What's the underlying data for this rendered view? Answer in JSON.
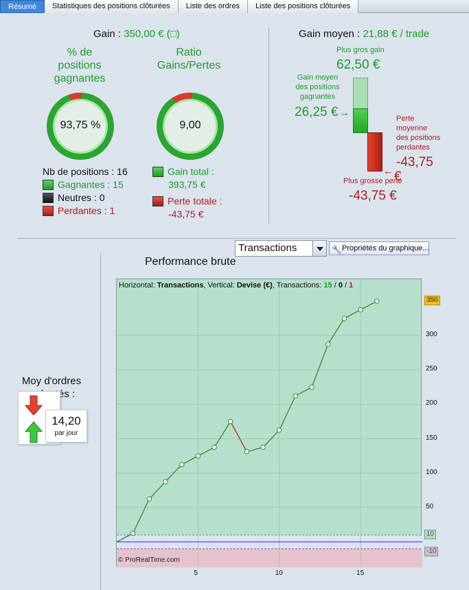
{
  "tabs": [
    {
      "label": "Résumé",
      "active": true
    },
    {
      "label": "Statistiques des positions clôturées",
      "active": false
    },
    {
      "label": "Liste des ordres",
      "active": false
    },
    {
      "label": "Liste des positions clôturées",
      "active": false
    }
  ],
  "summary": {
    "gain_label": "Gain :",
    "gain_value": "350,00 € (□)",
    "pct_title": "% de\npositions\ngagnantes",
    "pct_value": "93,75 %",
    "pct_fraction": 0.9375,
    "ratio_title": "Ratio\nGains/Pertes",
    "ratio_value": "9,00",
    "ratio_fraction": 0.9,
    "nb_positions": "Nb de positions : 16",
    "winners": "Gagnantes : 15",
    "neutral": "Neutres : 0",
    "losers": "Perdantes : 1",
    "total_gain_label": "Gain total :",
    "total_gain_value": "393,75 €",
    "total_loss_label": "Perte totale :",
    "total_loss_value": "-43,75 €"
  },
  "average": {
    "label": "Gain moyen :",
    "value": "21,88 € / trade",
    "biggest_gain_label": "Plus gros gain",
    "biggest_gain_value": "62,50 €",
    "avg_win_label": "Gain moyen\ndes positions\ngagnantes",
    "avg_win_value": "26,25 €",
    "avg_loss_label": "Perte\nmoyenne\ndes positions\nperdantes",
    "avg_loss_value": "-43,75",
    "avg_loss_unit": "€",
    "biggest_loss_label": "Plus grosse perte",
    "biggest_loss_value": "-43,75 €"
  },
  "performance": {
    "title": "Performance brute",
    "select_value": "Transactions",
    "props_button": "Propriétés du graphique..."
  },
  "orders": {
    "label": "Moy d'ordres\nexécutés :",
    "value": "14,20",
    "unit": "par jour"
  },
  "chart_data": {
    "type": "line",
    "header_prefix": "Horizontal:",
    "header_h": "Transactions",
    "header_v_prefix": ", Vertical:",
    "header_v": "Devise (€)",
    "header_tx": ", Transactions:",
    "tx_win": "15",
    "tx_neutral": "0",
    "tx_loss": "1",
    "watermark": "© ProRealTime.com",
    "x": [
      0,
      1,
      2,
      3,
      4,
      5,
      6,
      7,
      8,
      9,
      10,
      11,
      12,
      13,
      14,
      15,
      16
    ],
    "y": [
      0,
      12.5,
      62.5,
      87.5,
      112.5,
      125,
      137.5,
      175,
      131.25,
      137.5,
      162.5,
      212.5,
      225,
      287.5,
      325,
      337.5,
      350
    ],
    "losing_segments": [
      7
    ],
    "xlim": [
      0,
      18.8
    ],
    "ylim": [
      -37,
      382
    ],
    "xticks": [
      5,
      10,
      15
    ],
    "yticks": [
      50,
      100,
      150,
      200,
      250,
      300
    ],
    "last_value_label": "350",
    "band_upper_label": "10",
    "band_lower_label": "-10",
    "colors": {
      "background": "#b7e0cc",
      "line": "#2f8a2f",
      "loss": "#b22222",
      "band_upper": "#dde3f5",
      "band_lower": "#e6c2cf",
      "zero_line": "#2a2ac8",
      "last_tag": "#f2c21f"
    }
  }
}
